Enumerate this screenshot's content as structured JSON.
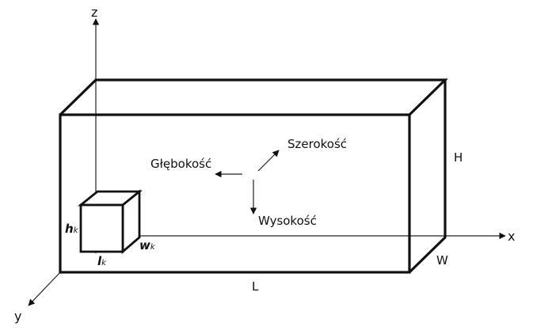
{
  "axes": {
    "z": "z",
    "x": "x",
    "y": "y"
  },
  "dimensions": {
    "length": "L",
    "height": "H",
    "width": "W"
  },
  "cube": {
    "h": "h",
    "h_sub": "k",
    "l": "l",
    "l_sub": "k",
    "w": "w",
    "w_sub": "k"
  },
  "directions": {
    "depth": "Głębokość",
    "width": "Szerokość",
    "height": "Wysokość"
  },
  "colors": {
    "stroke": "#111111",
    "background": "#ffffff"
  }
}
